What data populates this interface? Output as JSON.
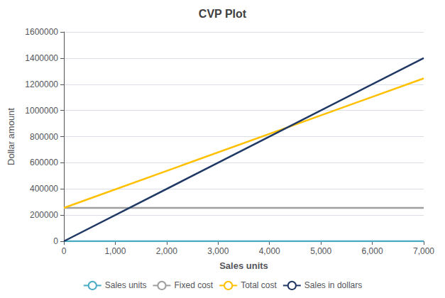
{
  "chart_data": {
    "type": "line",
    "title": "CVP Plot",
    "xlabel": "Sales units",
    "ylabel": "Dollar amount",
    "x": [
      0,
      7000
    ],
    "xlim": [
      0,
      7000
    ],
    "ylim": [
      0,
      1600000
    ],
    "xticks": [
      0,
      {
        "value": 1000,
        "label": "1,000"
      },
      {
        "value": 2000,
        "label": "2,000"
      },
      {
        "value": 3000,
        "label": "3,000"
      },
      {
        "value": 4000,
        "label": "4,000"
      },
      {
        "value": 5000,
        "label": "5,000"
      },
      {
        "value": 6000,
        "label": "6,000"
      },
      {
        "value": 7000,
        "label": "7,000"
      }
    ],
    "yticks": [
      0,
      200000,
      400000,
      600000,
      800000,
      1000000,
      1200000,
      1400000,
      1600000
    ],
    "grid": true,
    "legend": "bottom",
    "series": [
      {
        "name": "Sales units",
        "color": "#4BACC6",
        "values": [
          0,
          0
        ]
      },
      {
        "name": "Fixed cost",
        "color": "#9E9E9E",
        "values": [
          255000,
          255000
        ]
      },
      {
        "name": "Total cost",
        "color": "#FFC000",
        "values": [
          255000,
          1245000
        ]
      },
      {
        "name": "Sales in dollars",
        "color": "#1F3864",
        "values": [
          0,
          1400000
        ]
      }
    ]
  }
}
